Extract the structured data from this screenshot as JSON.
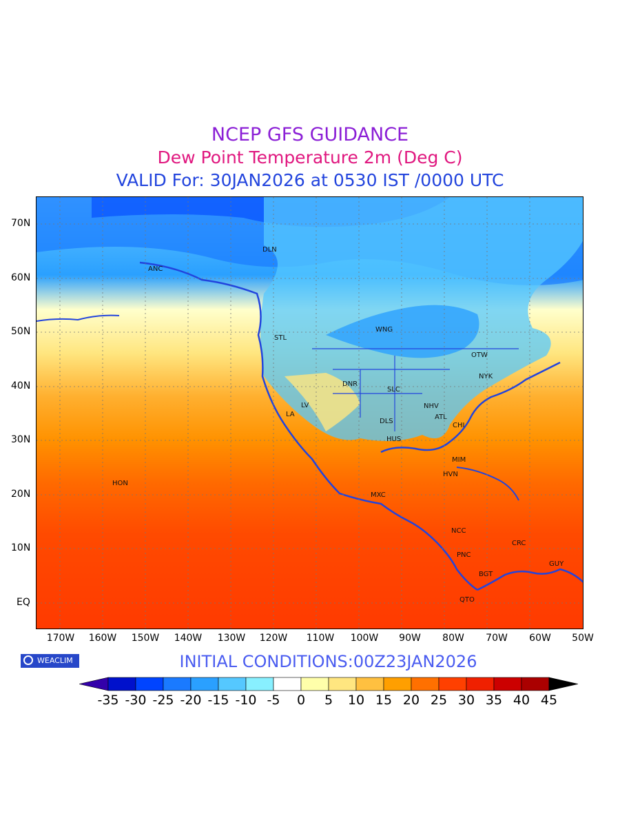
{
  "header": {
    "title": "NCEP GFS GUIDANCE",
    "subtitle": "Dew Point Temperature 2m (Deg C)",
    "valid": "VALID For: 30JAN2026 at 0530 IST /0000 UTC",
    "colors": {
      "title": "#8b1fd6",
      "subtitle": "#e0177f",
      "valid": "#2244dd"
    }
  },
  "axes": {
    "lat_labels": [
      "70N",
      "60N",
      "50N",
      "40N",
      "30N",
      "20N",
      "10N",
      "EQ"
    ],
    "lon_labels": [
      "170W",
      "160W",
      "150W",
      "140W",
      "130W",
      "120W",
      "110W",
      "100W",
      "90W",
      "80W",
      "70W",
      "60W",
      "50W"
    ]
  },
  "map": {
    "region": "North Pacific / North America",
    "stations": [
      "ANC",
      "DLN",
      "STL",
      "OTW",
      "NYK",
      "SLC",
      "LA",
      "LV",
      "DNR",
      "NHV",
      "ATL",
      "DLS",
      "CHI",
      "HUS",
      "MIM",
      "HVN",
      "MXC",
      "HON",
      "NCC",
      "PNC",
      "BGT",
      "CRC",
      "GUY",
      "QTO",
      "WNG"
    ]
  },
  "footer": {
    "badge": "WEACLIM",
    "initial_conditions": "INITIAL CONDITIONS:00Z23JAN2026",
    "init_color": "#4a5cf0"
  },
  "colorbar": {
    "colors": [
      "#3300aa",
      "#0011cc",
      "#0044ff",
      "#1a7aff",
      "#2aa0ff",
      "#55c8ff",
      "#88f0ff",
      "#ffffff",
      "#ffffaa",
      "#ffe680",
      "#ffc040",
      "#ff9f00",
      "#ff7000",
      "#ff4000",
      "#f02000",
      "#cc0000",
      "#aa0000",
      "#000000"
    ],
    "ticks": [
      "-35",
      "-30",
      "-25",
      "-20",
      "-15",
      "-10",
      "-5",
      "0",
      "5",
      "10",
      "15",
      "20",
      "25",
      "30",
      "35",
      "40",
      "45"
    ]
  }
}
